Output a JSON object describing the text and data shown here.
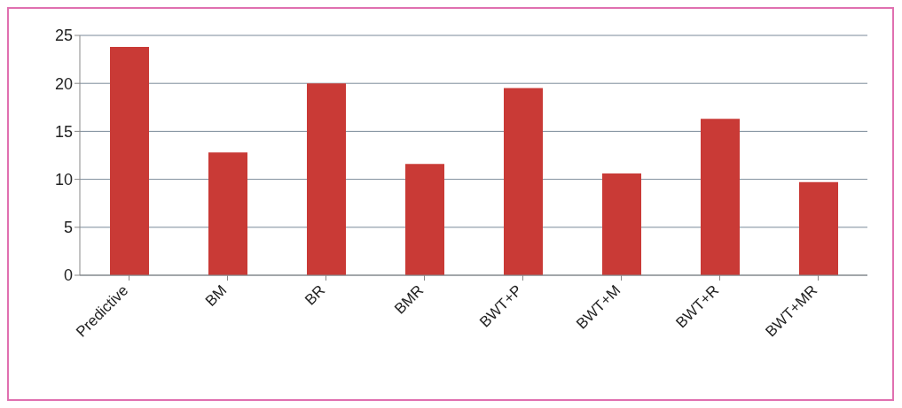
{
  "chart_data": {
    "type": "bar",
    "categories": [
      "Predictive",
      "BM",
      "BR",
      "BMR",
      "BWT+P",
      "BWT+M",
      "BWT+R",
      "BWT+MR"
    ],
    "values": [
      23.8,
      12.8,
      20.0,
      11.6,
      19.5,
      10.6,
      16.3,
      9.7
    ],
    "color": "#c93a36",
    "ylim": [
      0,
      25
    ],
    "yticks": [
      0,
      5,
      10,
      15,
      20,
      25
    ],
    "grid": "y"
  }
}
